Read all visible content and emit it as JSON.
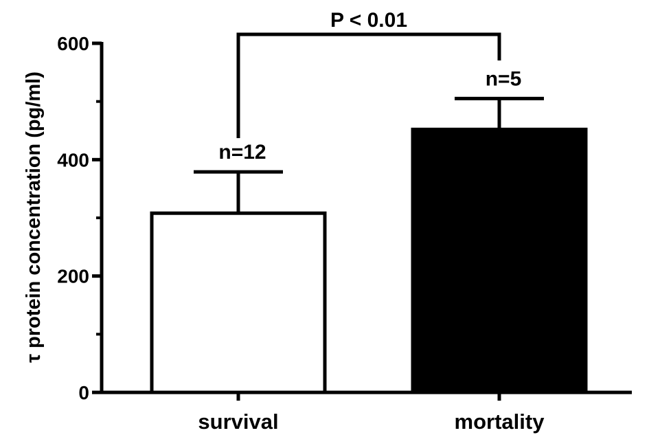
{
  "chart_data": {
    "type": "bar",
    "categories": [
      "survival",
      "mortality"
    ],
    "values": [
      308,
      452
    ],
    "error_upper": [
      379,
      505
    ],
    "n_labels": [
      "n=12",
      "n=5"
    ],
    "bar_fill": [
      "#ffffff",
      "#000000"
    ],
    "bar_stroke": "#000000",
    "ylabel": "τ protein concentration (pg/ml)",
    "xlabel": "",
    "ylim": [
      0,
      600
    ],
    "yticks": [
      0,
      200,
      400,
      600
    ],
    "yticks_minor": [
      100,
      300,
      500
    ],
    "significance": {
      "label": "P < 0.01",
      "between": [
        0,
        1
      ]
    },
    "grid": false,
    "legend": "none"
  }
}
